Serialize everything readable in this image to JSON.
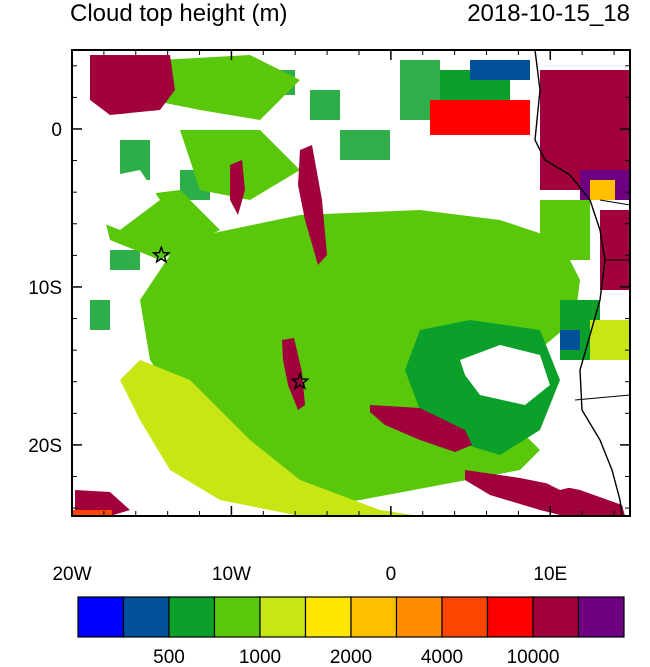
{
  "title": "Cloud top height (m)",
  "timestamp": "2018-10-15_18",
  "lat_ticks": [
    {
      "label": "0",
      "lat": 0
    },
    {
      "label": "10S",
      "lat": -10
    },
    {
      "label": "20S",
      "lat": -20
    }
  ],
  "lon_ticks": [
    {
      "label": "20W",
      "lon": -20
    },
    {
      "label": "10W",
      "lon": -10
    },
    {
      "label": "0",
      "lon": 0
    },
    {
      "label": "10E",
      "lon": 10
    }
  ],
  "map_extent": {
    "lon_min": -20,
    "lon_max": 15,
    "lat_min": -24.5,
    "lat_max": 5
  },
  "markers": [
    {
      "type": "star",
      "lon": -14.4,
      "lat": -8
    },
    {
      "type": "star",
      "lon": -5.7,
      "lat": -16
    }
  ],
  "colorbar": {
    "colors": [
      "#0000ff",
      "#00509a",
      "#0aa02a",
      "#5ac80a",
      "#c8e614",
      "#ffe600",
      "#ffbe00",
      "#ff8c00",
      "#ff4600",
      "#ff0000",
      "#a0003c",
      "#6e0082"
    ],
    "labels": [
      "500",
      "1000",
      "2000",
      "4000",
      "10000"
    ]
  }
}
